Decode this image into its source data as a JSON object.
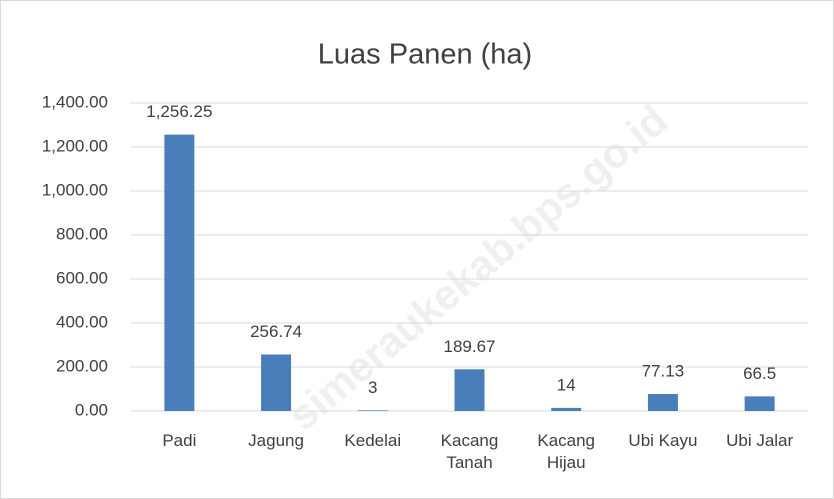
{
  "chart_data": {
    "type": "bar",
    "title": "Luas Panen (ha)",
    "categories": [
      "Padi",
      "Jagung",
      "Kedelai",
      "Kacang Tanah",
      "Kacang Hijau",
      "Ubi Kayu",
      "Ubi Jalar"
    ],
    "values": [
      1256.25,
      256.74,
      3,
      189.67,
      14,
      77.13,
      66.5
    ],
    "value_labels": [
      "1,256.25",
      "256.74",
      "3",
      "189.67",
      "14",
      "77.13",
      "66.5"
    ],
    "color": "#4a7ebb",
    "ylim": [
      0,
      1400
    ],
    "yticks": [
      {
        "value": 0,
        "label": "0.00"
      },
      {
        "value": 200,
        "label": "200.00"
      },
      {
        "value": 400,
        "label": "400.00"
      },
      {
        "value": 600,
        "label": "600.00"
      },
      {
        "value": 800,
        "label": "800.00"
      },
      {
        "value": 1000,
        "label": "1,000.00"
      },
      {
        "value": 1200,
        "label": "1,200.00"
      },
      {
        "value": 1400,
        "label": "1,400.00"
      }
    ],
    "grid": true,
    "watermark": "simeraukekab.bps.go.id"
  }
}
